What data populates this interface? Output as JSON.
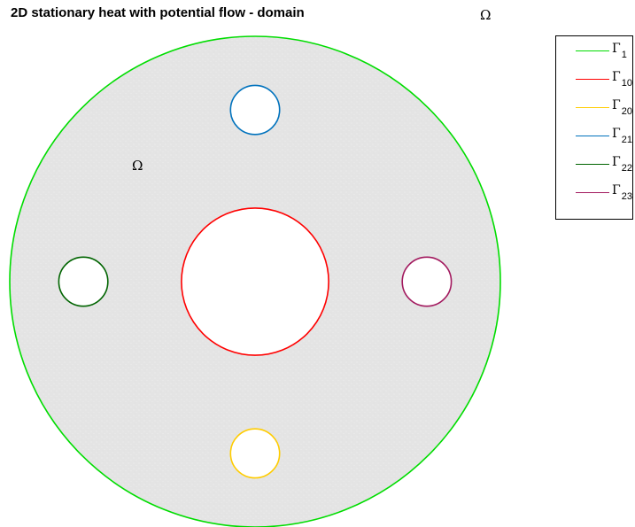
{
  "title": "2D stationary heat with potential flow - domain",
  "chart_data": {
    "type": "domain",
    "title": "2D stationary heat with potential flow - domain",
    "xlabel": "",
    "ylabel": "",
    "grid": false,
    "axis_visible": false,
    "domain_label": "Ω",
    "domain_fill": "#e6e6e6",
    "outer_circle": {
      "name": "Γ1",
      "center": [
        0,
        0
      ],
      "radius": 1.0,
      "color": "#00dd00"
    },
    "holes": [
      {
        "name": "Γ10",
        "center": [
          0,
          0
        ],
        "radius": 0.3,
        "color": "#ff0000"
      },
      {
        "name": "Γ20",
        "center": [
          0,
          -0.7
        ],
        "radius": 0.1,
        "color": "#ffcc00"
      },
      {
        "name": "Γ21",
        "center": [
          0,
          0.7
        ],
        "radius": 0.1,
        "color": "#0072bd"
      },
      {
        "name": "Γ22",
        "center": [
          -0.7,
          0
        ],
        "radius": 0.1,
        "color": "#006400"
      },
      {
        "name": "Γ23",
        "center": [
          0.7,
          0
        ],
        "radius": 0.1,
        "color": "#a2195e"
      }
    ],
    "xlim": [
      -1.04,
      1.04
    ],
    "ylim": [
      -1.04,
      1.04
    ],
    "legend_position": "outside-top-right"
  },
  "legend": [
    {
      "symbol": "Γ",
      "sub": "1",
      "color": "#00dd00"
    },
    {
      "symbol": "Γ",
      "sub": "10",
      "color": "#ff0000"
    },
    {
      "symbol": "Γ",
      "sub": "20",
      "color": "#ffcc00"
    },
    {
      "symbol": "Γ",
      "sub": "21",
      "color": "#0072bd"
    },
    {
      "symbol": "Γ",
      "sub": "22",
      "color": "#006400"
    },
    {
      "symbol": "Γ",
      "sub": "23",
      "color": "#a2195e"
    }
  ],
  "omega_label_top": "Ω",
  "omega_label_domain": "Ω"
}
